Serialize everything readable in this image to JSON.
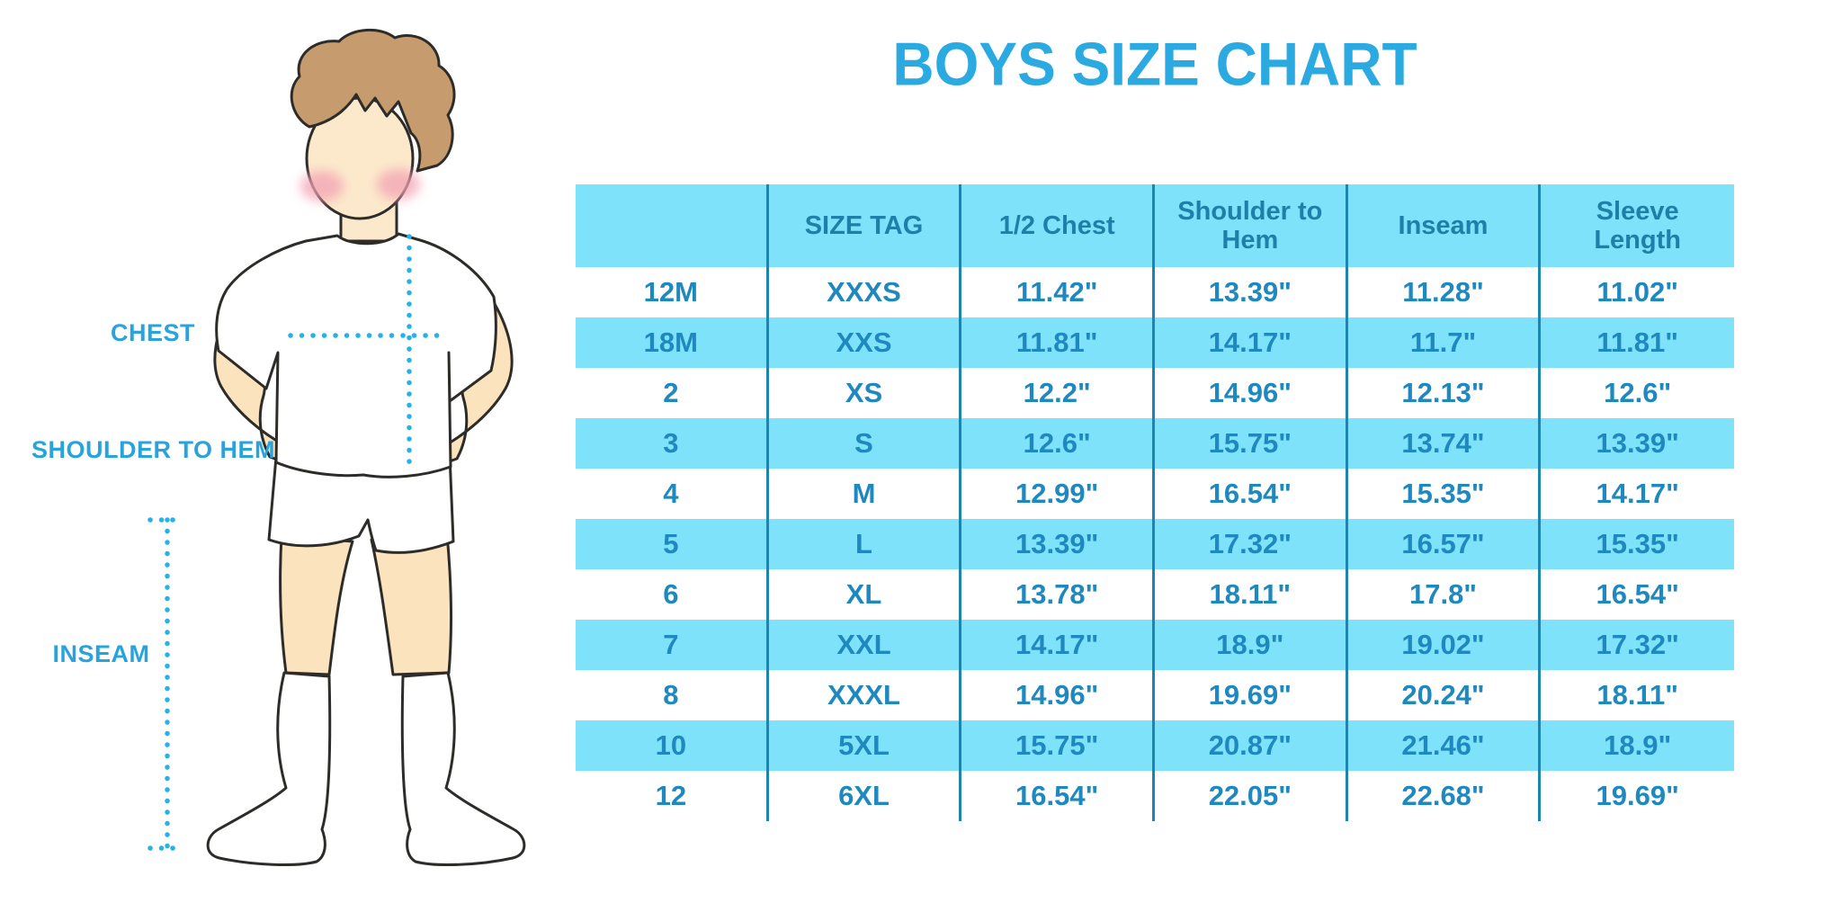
{
  "title": "BOYS SIZE CHART",
  "figure": {
    "labels": {
      "chest": "CHEST",
      "shoulder_to_hem": "SHOULDER TO HEM",
      "inseam": "INSEAM"
    }
  },
  "chart_data": {
    "type": "table",
    "title": "BOYS SIZE CHART",
    "columns": [
      "",
      "SIZE TAG",
      "1/2 Chest",
      "Shoulder to Hem",
      "Inseam",
      "Sleeve Length"
    ],
    "rows": [
      [
        "12M",
        "XXXS",
        "11.42\"",
        "13.39\"",
        "11.28\"",
        "11.02\""
      ],
      [
        "18M",
        "XXS",
        "11.81\"",
        "14.17\"",
        "11.7\"",
        "11.81\""
      ],
      [
        "2",
        "XS",
        "12.2\"",
        "14.96\"",
        "12.13\"",
        "12.6\""
      ],
      [
        "3",
        "S",
        "12.6\"",
        "15.75\"",
        "13.74\"",
        "13.39\""
      ],
      [
        "4",
        "M",
        "12.99\"",
        "16.54\"",
        "15.35\"",
        "14.17\""
      ],
      [
        "5",
        "L",
        "13.39\"",
        "17.32\"",
        "16.57\"",
        "15.35\""
      ],
      [
        "6",
        "XL",
        "13.78\"",
        "18.11\"",
        "17.8\"",
        "16.54\""
      ],
      [
        "7",
        "XXL",
        "14.17\"",
        "18.9\"",
        "19.02\"",
        "17.32\""
      ],
      [
        "8",
        "XXXL",
        "14.96\"",
        "19.69\"",
        "20.24\"",
        "18.11\""
      ],
      [
        "10",
        "5XL",
        "15.75\"",
        "20.87\"",
        "21.46\"",
        "18.9\""
      ],
      [
        "12",
        "6XL",
        "16.54\"",
        "22.05\"",
        "22.68\"",
        "19.69\""
      ]
    ]
  },
  "colors": {
    "title_blue": "#2BA9E1",
    "label_blue": "#29A3DC",
    "dot_blue": "#25B2E9",
    "table_fill_blue": "#7DE2FA",
    "table_line_blue": "#1D85B0",
    "table_header_text": "#1E7FA9",
    "table_body_text": "#1F88BE",
    "skin": "#FAE3BD",
    "skin_face": "#FCE9CC",
    "hair_brown": "#C69C6E",
    "cheek_pink": "#F2A2B3",
    "outline_dark": "#2E2C29"
  }
}
